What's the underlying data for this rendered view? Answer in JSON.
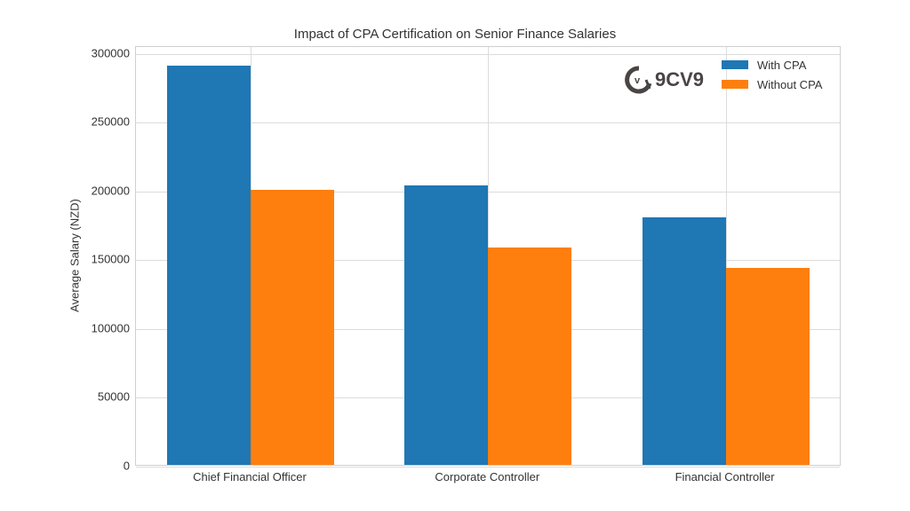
{
  "chart_data": {
    "type": "bar",
    "title": "Impact of CPA Certification on Senior Finance Salaries",
    "xlabel": "",
    "ylabel": "Average Salary (NZD)",
    "categories": [
      "Chief Financial Officer",
      "Corporate Controller",
      "Financial Controller"
    ],
    "series": [
      {
        "name": "With CPA",
        "color": "#1f77b4",
        "values": [
          290000,
          203000,
          180000
        ]
      },
      {
        "name": "Without CPA",
        "color": "#ff7f0e",
        "values": [
          200000,
          158000,
          143000
        ]
      }
    ],
    "ylim": [
      0,
      305000
    ],
    "yticks": [
      0,
      50000,
      100000,
      150000,
      200000,
      250000,
      300000
    ],
    "ytick_labels": [
      "0",
      "50000",
      "100000",
      "150000",
      "200000",
      "250000",
      "300000"
    ],
    "grid": true,
    "legend_position": "upper right"
  },
  "watermark": {
    "text": "9CV9",
    "icon": "v"
  }
}
